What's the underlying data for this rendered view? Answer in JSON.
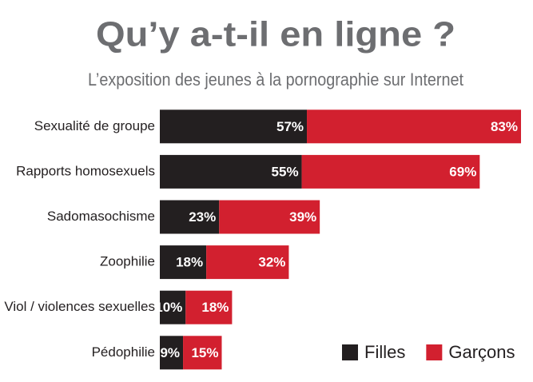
{
  "chart_data": {
    "type": "stacked-bar-horizontal",
    "title": "Qu’y a-t-il en ligne ?",
    "subtitle": "L’exposition des jeunes à la pornographie sur Internet",
    "categories": [
      "Sexualité de groupe",
      "Rapports homosexuels",
      "Sadomasochisme",
      "Zoophilie",
      "Viol / violences sexuelles",
      "Pédophilie"
    ],
    "series": [
      {
        "name": "Filles",
        "color": "#231f20",
        "values": [
          57,
          55,
          23,
          18,
          10,
          9
        ],
        "value_labels": [
          "57%",
          "55%",
          "23%",
          "18%",
          "10%",
          "9%"
        ]
      },
      {
        "name": "Garçons",
        "color": "#d2202f",
        "values": [
          83,
          69,
          39,
          32,
          18,
          15
        ],
        "value_labels": [
          "83%",
          "69%",
          "39%",
          "32%",
          "18%",
          "15%"
        ]
      }
    ],
    "legend": "bottom-right"
  }
}
